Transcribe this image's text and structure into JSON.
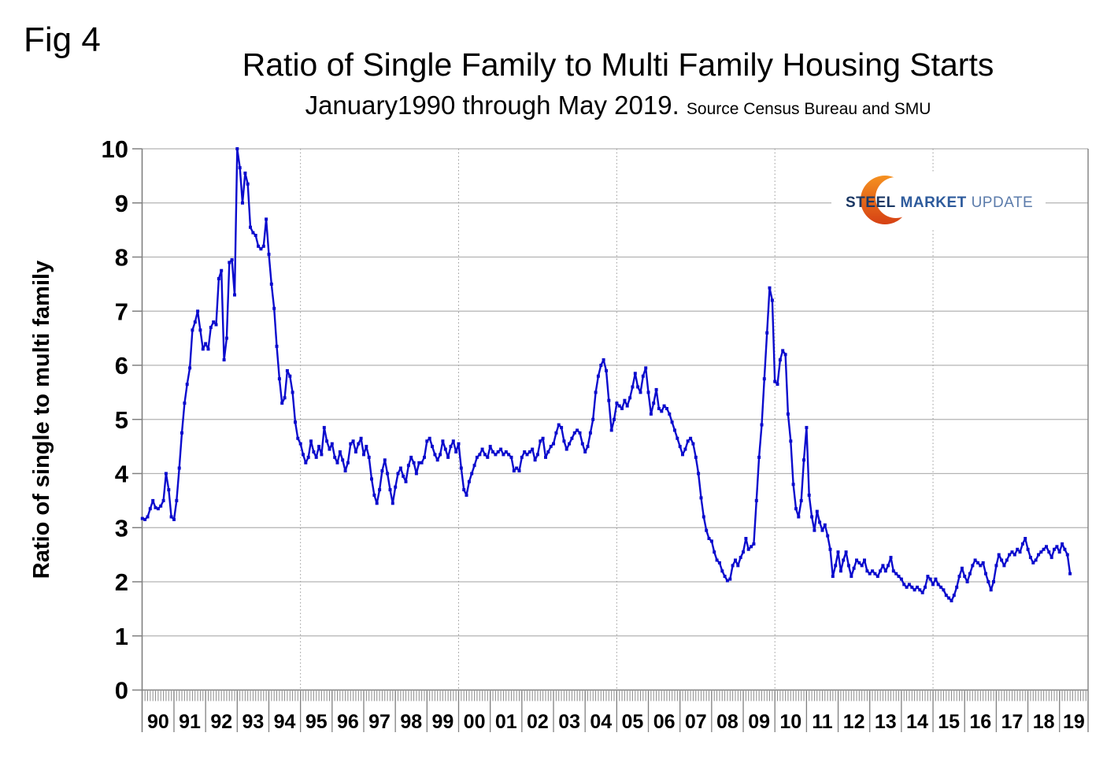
{
  "figure": {
    "fig_label": "Fig 4",
    "title": "Ratio of Single Family to Multi Family Housing Starts",
    "subtitle": "January1990 through May 2019.",
    "source_note": "Source Census Bureau and SMU"
  },
  "logo": {
    "word1": "STEEL",
    "word2": "MARKET",
    "word3": "UPDATE",
    "crescent_color_top": "#f59120",
    "crescent_color_bottom": "#d6411427"
  },
  "chart_data": {
    "type": "line",
    "title": "Ratio of Single Family to Multi Family Housing Starts",
    "subtitle": "January1990 through May 2019. Source Census Bureau and SMU",
    "ylabel": "Ratio of single to multi family",
    "xlabel": "",
    "x_start": "1990-01",
    "x_end": "2019-05",
    "x_frequency": "monthly",
    "ylim": [
      0,
      10
    ],
    "y_ticks": [
      "0",
      "1",
      "2",
      "3",
      "4",
      "5",
      "6",
      "7",
      "8",
      "9",
      "10"
    ],
    "x_tick_labels": [
      "90",
      "91",
      "92",
      "93",
      "94",
      "95",
      "96",
      "97",
      "98",
      "99",
      "00",
      "01",
      "02",
      "03",
      "04",
      "05",
      "06",
      "07",
      "08",
      "09",
      "10",
      "11",
      "12",
      "13",
      "14",
      "15",
      "16",
      "17",
      "18",
      "19"
    ],
    "vertical_dashed_gridlines_at": [
      "1995-01",
      "2000-01",
      "2005-01",
      "2010-01",
      "2015-01"
    ],
    "grid": "horizontal solid, vertical dashed every 5 years",
    "legend": "none",
    "line_color": "#0b0bcd",
    "marker": "square",
    "series": [
      {
        "name": "Single family / multi family housing starts ratio",
        "values": [
          3.17,
          3.15,
          3.2,
          3.35,
          3.5,
          3.37,
          3.35,
          3.4,
          3.5,
          4.0,
          3.7,
          3.2,
          3.15,
          3.5,
          4.1,
          4.75,
          5.3,
          5.65,
          5.95,
          6.65,
          6.8,
          7.0,
          6.65,
          6.3,
          6.4,
          6.3,
          6.7,
          6.8,
          6.75,
          7.6,
          7.75,
          6.1,
          6.5,
          7.9,
          7.95,
          7.3,
          10.0,
          9.65,
          9.0,
          9.55,
          9.35,
          8.55,
          8.45,
          8.4,
          8.2,
          8.15,
          8.2,
          8.7,
          8.05,
          7.5,
          7.05,
          6.35,
          5.75,
          5.3,
          5.4,
          5.9,
          5.8,
          5.5,
          4.95,
          4.65,
          4.55,
          4.35,
          4.2,
          4.3,
          4.6,
          4.4,
          4.3,
          4.5,
          4.35,
          4.85,
          4.6,
          4.45,
          4.55,
          4.3,
          4.2,
          4.4,
          4.25,
          4.05,
          4.2,
          4.55,
          4.6,
          4.4,
          4.55,
          4.65,
          4.35,
          4.5,
          4.3,
          3.9,
          3.6,
          3.45,
          3.7,
          4.05,
          4.25,
          4.0,
          3.7,
          3.45,
          3.75,
          4.0,
          4.1,
          3.95,
          3.85,
          4.15,
          4.3,
          4.2,
          4.0,
          4.2,
          4.2,
          4.3,
          4.6,
          4.65,
          4.5,
          4.35,
          4.25,
          4.35,
          4.6,
          4.45,
          4.3,
          4.5,
          4.6,
          4.4,
          4.55,
          4.1,
          3.7,
          3.6,
          3.85,
          4.0,
          4.15,
          4.3,
          4.35,
          4.45,
          4.35,
          4.3,
          4.5,
          4.4,
          4.35,
          4.4,
          4.45,
          4.35,
          4.4,
          4.35,
          4.3,
          4.05,
          4.1,
          4.05,
          4.3,
          4.4,
          4.35,
          4.4,
          4.45,
          4.25,
          4.35,
          4.6,
          4.65,
          4.3,
          4.4,
          4.5,
          4.55,
          4.75,
          4.9,
          4.85,
          4.6,
          4.45,
          4.55,
          4.65,
          4.75,
          4.8,
          4.75,
          4.55,
          4.4,
          4.5,
          4.75,
          5.0,
          5.5,
          5.8,
          6.0,
          6.1,
          5.9,
          5.35,
          4.8,
          5.0,
          5.3,
          5.25,
          5.2,
          5.35,
          5.25,
          5.4,
          5.6,
          5.85,
          5.6,
          5.5,
          5.8,
          5.95,
          5.5,
          5.1,
          5.3,
          5.55,
          5.2,
          5.15,
          5.25,
          5.2,
          5.1,
          4.95,
          4.8,
          4.65,
          4.5,
          4.35,
          4.45,
          4.6,
          4.65,
          4.55,
          4.3,
          4.0,
          3.55,
          3.2,
          2.95,
          2.8,
          2.75,
          2.55,
          2.4,
          2.35,
          2.2,
          2.1,
          2.02,
          2.05,
          2.3,
          2.4,
          2.3,
          2.45,
          2.55,
          2.8,
          2.6,
          2.65,
          2.7,
          3.5,
          4.3,
          4.9,
          5.75,
          6.6,
          7.43,
          7.2,
          5.7,
          5.65,
          6.1,
          6.27,
          6.2,
          5.1,
          4.6,
          3.8,
          3.35,
          3.2,
          3.5,
          4.25,
          4.85,
          3.6,
          3.2,
          2.95,
          3.3,
          3.1,
          2.95,
          3.05,
          2.85,
          2.6,
          2.1,
          2.3,
          2.55,
          2.2,
          2.4,
          2.55,
          2.3,
          2.1,
          2.25,
          2.4,
          2.35,
          2.3,
          2.4,
          2.2,
          2.15,
          2.2,
          2.15,
          2.1,
          2.2,
          2.3,
          2.2,
          2.3,
          2.45,
          2.2,
          2.15,
          2.1,
          2.05,
          1.95,
          1.9,
          1.95,
          1.9,
          1.85,
          1.9,
          1.85,
          1.8,
          1.9,
          2.1,
          2.05,
          1.95,
          2.05,
          1.95,
          1.9,
          1.85,
          1.75,
          1.7,
          1.65,
          1.75,
          1.9,
          2.1,
          2.25,
          2.1,
          2.0,
          2.15,
          2.3,
          2.4,
          2.35,
          2.3,
          2.35,
          2.15,
          2.0,
          1.85,
          2.0,
          2.3,
          2.5,
          2.4,
          2.3,
          2.4,
          2.5,
          2.55,
          2.5,
          2.6,
          2.55,
          2.7,
          2.8,
          2.6,
          2.45,
          2.35,
          2.4,
          2.5,
          2.55,
          2.6,
          2.65,
          2.55,
          2.45,
          2.6,
          2.65,
          2.55,
          2.7,
          2.6,
          2.5,
          2.15
        ]
      }
    ]
  }
}
